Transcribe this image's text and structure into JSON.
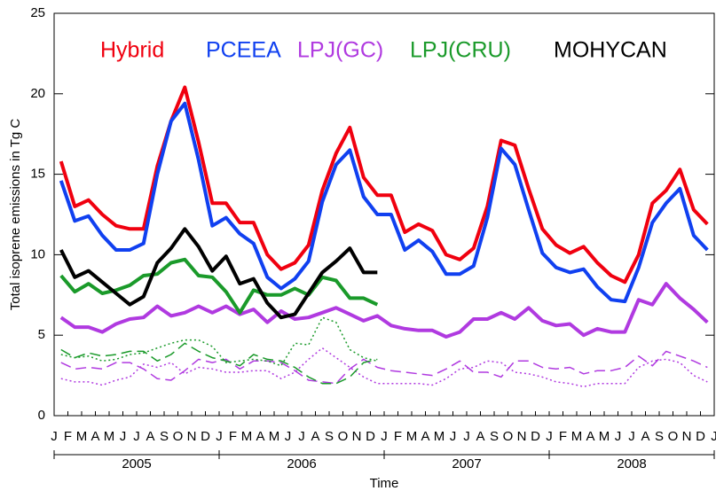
{
  "chart_data": {
    "type": "line",
    "ylabel": "Total isoprene emissions in Tg C",
    "xlabel": "Time",
    "xlim": [
      "2005-01",
      "2009-01"
    ],
    "ylim": [
      0,
      25
    ],
    "yticks": [
      0,
      5,
      10,
      15,
      20,
      25
    ],
    "xticks": [
      {
        "value": "2005-01",
        "label": "J"
      },
      {
        "value": "2005-02",
        "label": "F"
      },
      {
        "value": "2005-03",
        "label": "M"
      },
      {
        "value": "2005-04",
        "label": "A"
      },
      {
        "value": "2005-05",
        "label": "M"
      },
      {
        "value": "2005-06",
        "label": "J"
      },
      {
        "value": "2005-07",
        "label": "J"
      },
      {
        "value": "2005-08",
        "label": "A"
      },
      {
        "value": "2005-09",
        "label": "S"
      },
      {
        "value": "2005-10",
        "label": "O"
      },
      {
        "value": "2005-11",
        "label": "N"
      },
      {
        "value": "2005-12",
        "label": "D"
      },
      {
        "value": "2006-01",
        "label": "J"
      },
      {
        "value": "2006-02",
        "label": "F"
      },
      {
        "value": "2006-03",
        "label": "M"
      },
      {
        "value": "2006-04",
        "label": "A"
      },
      {
        "value": "2006-05",
        "label": "M"
      },
      {
        "value": "2006-06",
        "label": "J"
      },
      {
        "value": "2006-07",
        "label": "J"
      },
      {
        "value": "2006-08",
        "label": "A"
      },
      {
        "value": "2006-09",
        "label": "S"
      },
      {
        "value": "2006-10",
        "label": "O"
      },
      {
        "value": "2006-11",
        "label": "N"
      },
      {
        "value": "2006-12",
        "label": "D"
      },
      {
        "value": "2007-01",
        "label": "J"
      },
      {
        "value": "2007-02",
        "label": "F"
      },
      {
        "value": "2007-03",
        "label": "M"
      },
      {
        "value": "2007-04",
        "label": "A"
      },
      {
        "value": "2007-05",
        "label": "M"
      },
      {
        "value": "2007-06",
        "label": "J"
      },
      {
        "value": "2007-07",
        "label": "J"
      },
      {
        "value": "2007-08",
        "label": "A"
      },
      {
        "value": "2007-09",
        "label": "S"
      },
      {
        "value": "2007-10",
        "label": "O"
      },
      {
        "value": "2007-11",
        "label": "N"
      },
      {
        "value": "2007-12",
        "label": "D"
      },
      {
        "value": "2008-01",
        "label": "J"
      },
      {
        "value": "2008-02",
        "label": "F"
      },
      {
        "value": "2008-03",
        "label": "M"
      },
      {
        "value": "2008-04",
        "label": "A"
      },
      {
        "value": "2008-05",
        "label": "M"
      },
      {
        "value": "2008-06",
        "label": "J"
      },
      {
        "value": "2008-07",
        "label": "J"
      },
      {
        "value": "2008-08",
        "label": "A"
      },
      {
        "value": "2008-09",
        "label": "S"
      },
      {
        "value": "2008-10",
        "label": "O"
      },
      {
        "value": "2008-11",
        "label": "N"
      },
      {
        "value": "2008-12",
        "label": "D"
      },
      {
        "value": "2009-01",
        "label": "J"
      }
    ],
    "year_labels": [
      "2005",
      "2006",
      "2007",
      "2008"
    ],
    "x": [
      "2005-01",
      "2005-02",
      "2005-03",
      "2005-04",
      "2005-05",
      "2005-06",
      "2005-07",
      "2005-08",
      "2005-09",
      "2005-10",
      "2005-11",
      "2005-12",
      "2006-01",
      "2006-02",
      "2006-03",
      "2006-04",
      "2006-05",
      "2006-06",
      "2006-07",
      "2006-08",
      "2006-09",
      "2006-10",
      "2006-11",
      "2006-12",
      "2007-01",
      "2007-02",
      "2007-03",
      "2007-04",
      "2007-05",
      "2007-06",
      "2007-07",
      "2007-08",
      "2007-09",
      "2007-10",
      "2007-11",
      "2007-12",
      "2008-01",
      "2008-02",
      "2008-03",
      "2008-04",
      "2008-05",
      "2008-06",
      "2008-07",
      "2008-08",
      "2008-09",
      "2008-10",
      "2008-11",
      "2008-12"
    ],
    "series": [
      {
        "name": "Hybrid",
        "color": "#f0000f",
        "dash": "solid",
        "values": [
          15.8,
          13.0,
          13.4,
          12.5,
          11.8,
          11.6,
          11.6,
          15.5,
          18.3,
          20.4,
          17.0,
          13.2,
          13.2,
          12.0,
          12.0,
          10.0,
          9.1,
          9.5,
          10.6,
          14.0,
          16.3,
          17.9,
          14.8,
          13.7,
          13.7,
          11.4,
          11.9,
          11.5,
          10.0,
          9.7,
          10.4,
          13.0,
          17.1,
          16.8,
          14.1,
          11.6,
          10.6,
          10.1,
          10.5,
          9.5,
          8.7,
          8.3,
          10.0,
          13.2,
          14.0,
          15.3,
          12.8,
          11.9
        ]
      },
      {
        "name": "PCEEA",
        "color": "#1040f0",
        "dash": "solid",
        "values": [
          14.6,
          12.1,
          12.4,
          11.2,
          10.3,
          10.3,
          10.7,
          15.0,
          18.3,
          19.4,
          15.9,
          11.8,
          12.3,
          11.3,
          10.7,
          8.6,
          7.9,
          8.5,
          9.6,
          13.3,
          15.6,
          16.5,
          13.6,
          12.5,
          12.5,
          10.3,
          10.9,
          10.2,
          8.8,
          8.8,
          9.3,
          12.3,
          16.6,
          15.6,
          12.8,
          10.1,
          9.2,
          8.9,
          9.1,
          8.0,
          7.2,
          7.1,
          9.2,
          12.0,
          13.2,
          14.1,
          11.2,
          10.3
        ]
      },
      {
        "name": "LPJ(GC)",
        "color": "#b03ae0",
        "dash": "solid",
        "values": [
          6.1,
          5.5,
          5.5,
          5.2,
          5.7,
          6.0,
          6.1,
          6.8,
          6.2,
          6.4,
          6.8,
          6.4,
          6.8,
          6.3,
          6.6,
          5.8,
          6.5,
          6.0,
          6.1,
          6.4,
          6.7,
          6.3,
          5.9,
          6.2,
          5.6,
          5.4,
          5.3,
          5.3,
          4.9,
          5.2,
          6.0,
          6.0,
          6.4,
          6.0,
          6.7,
          5.9,
          5.6,
          5.7,
          5.0,
          5.4,
          5.2,
          5.2,
          7.2,
          6.9,
          8.2,
          7.3,
          6.6,
          5.8
        ]
      },
      {
        "name": "LPJ(CRU)",
        "color": "#1a9a2a",
        "dash": "solid",
        "x": [
          "2005-01",
          "2005-02",
          "2005-03",
          "2005-04",
          "2005-05",
          "2005-06",
          "2005-07",
          "2005-08",
          "2005-09",
          "2005-10",
          "2005-11",
          "2005-12",
          "2006-01",
          "2006-02",
          "2006-03",
          "2006-04",
          "2006-05",
          "2006-06",
          "2006-07",
          "2006-08",
          "2006-09",
          "2006-10",
          "2006-11",
          "2006-12"
        ],
        "values": [
          8.7,
          7.7,
          8.2,
          7.6,
          7.8,
          8.1,
          8.7,
          8.8,
          9.5,
          9.7,
          8.7,
          8.6,
          7.7,
          6.4,
          7.8,
          7.5,
          7.5,
          7.9,
          7.5,
          8.6,
          8.4,
          7.3,
          7.3,
          6.9
        ]
      },
      {
        "name": "MOHYCAN",
        "color": "#000000",
        "dash": "solid",
        "x": [
          "2005-01",
          "2005-02",
          "2005-03",
          "2005-04",
          "2005-05",
          "2005-06",
          "2005-07",
          "2005-08",
          "2005-09",
          "2005-10",
          "2005-11",
          "2005-12",
          "2006-01",
          "2006-02",
          "2006-03",
          "2006-04",
          "2006-05",
          "2006-06",
          "2006-07",
          "2006-08",
          "2006-09",
          "2006-10",
          "2006-11",
          "2006-12"
        ],
        "values": [
          10.3,
          8.6,
          9.0,
          8.3,
          7.6,
          6.9,
          7.4,
          9.5,
          10.4,
          11.6,
          10.5,
          9.0,
          9.9,
          8.2,
          8.5,
          7.0,
          6.1,
          6.3,
          7.6,
          8.9,
          9.6,
          10.4,
          8.9,
          8.9
        ]
      },
      {
        "color": "#b03ae0",
        "dash": "dashed",
        "values": [
          3.3,
          2.9,
          3.0,
          2.9,
          3.3,
          3.3,
          2.9,
          2.3,
          2.2,
          2.8,
          3.5,
          3.3,
          3.5,
          2.9,
          3.4,
          3.4,
          3.3,
          2.8,
          2.2,
          2.1,
          2.0,
          2.9,
          3.5,
          3.0,
          2.8,
          2.7,
          2.6,
          2.5,
          2.9,
          3.4,
          2.7,
          2.7,
          2.4,
          3.4,
          3.4,
          3.0,
          2.9,
          3.0,
          2.6,
          2.8,
          2.8,
          3.0,
          3.7,
          3.1,
          4.0,
          3.7,
          3.4,
          3.0
        ]
      },
      {
        "color": "#b03ae0",
        "dash": "dotted",
        "values": [
          2.3,
          2.1,
          2.1,
          1.9,
          2.2,
          2.4,
          3.2,
          3.0,
          3.3,
          2.6,
          3.0,
          2.9,
          2.7,
          2.7,
          2.8,
          2.8,
          2.3,
          2.7,
          3.5,
          4.2,
          3.6,
          3.0,
          2.4,
          2.0,
          2.0,
          2.0,
          2.0,
          1.9,
          2.3,
          2.9,
          3.0,
          3.4,
          3.3,
          2.7,
          2.6,
          2.4,
          2.1,
          2.0,
          1.8,
          2.0,
          2.0,
          2.0,
          3.0,
          3.4,
          3.5,
          3.3,
          2.5,
          2.1
        ]
      },
      {
        "color": "#1a9a2a",
        "dash": "dashed",
        "x": [
          "2005-01",
          "2005-02",
          "2005-03",
          "2005-04",
          "2005-05",
          "2005-06",
          "2005-07",
          "2005-08",
          "2005-09",
          "2005-10",
          "2005-11",
          "2005-12",
          "2006-01",
          "2006-02",
          "2006-03",
          "2006-04",
          "2006-05",
          "2006-06",
          "2006-07",
          "2006-08",
          "2006-09",
          "2006-10",
          "2006-11",
          "2006-12"
        ],
        "values": [
          4.1,
          3.6,
          3.9,
          3.7,
          3.8,
          4.0,
          4.0,
          3.4,
          3.8,
          4.5,
          4.0,
          3.6,
          3.4,
          3.1,
          3.8,
          3.5,
          3.4,
          3.0,
          2.4,
          2.0,
          2.0,
          2.4,
          3.3,
          3.5
        ]
      },
      {
        "color": "#1a9a2a",
        "dash": "dotted",
        "x": [
          "2005-01",
          "2005-02",
          "2005-03",
          "2005-04",
          "2005-05",
          "2005-06",
          "2005-07",
          "2005-08",
          "2005-09",
          "2005-10",
          "2005-11",
          "2005-12",
          "2006-01",
          "2006-02",
          "2006-03",
          "2006-04",
          "2006-05",
          "2006-06",
          "2006-07",
          "2006-08",
          "2006-09",
          "2006-10",
          "2006-11",
          "2006-12"
        ],
        "values": [
          3.8,
          3.6,
          3.7,
          3.4,
          3.5,
          3.8,
          3.9,
          4.2,
          4.5,
          4.7,
          4.7,
          4.3,
          3.3,
          3.4,
          3.5,
          3.4,
          3.1,
          4.5,
          4.4,
          6.1,
          5.8,
          4.1,
          3.6,
          3.4
        ]
      }
    ]
  }
}
